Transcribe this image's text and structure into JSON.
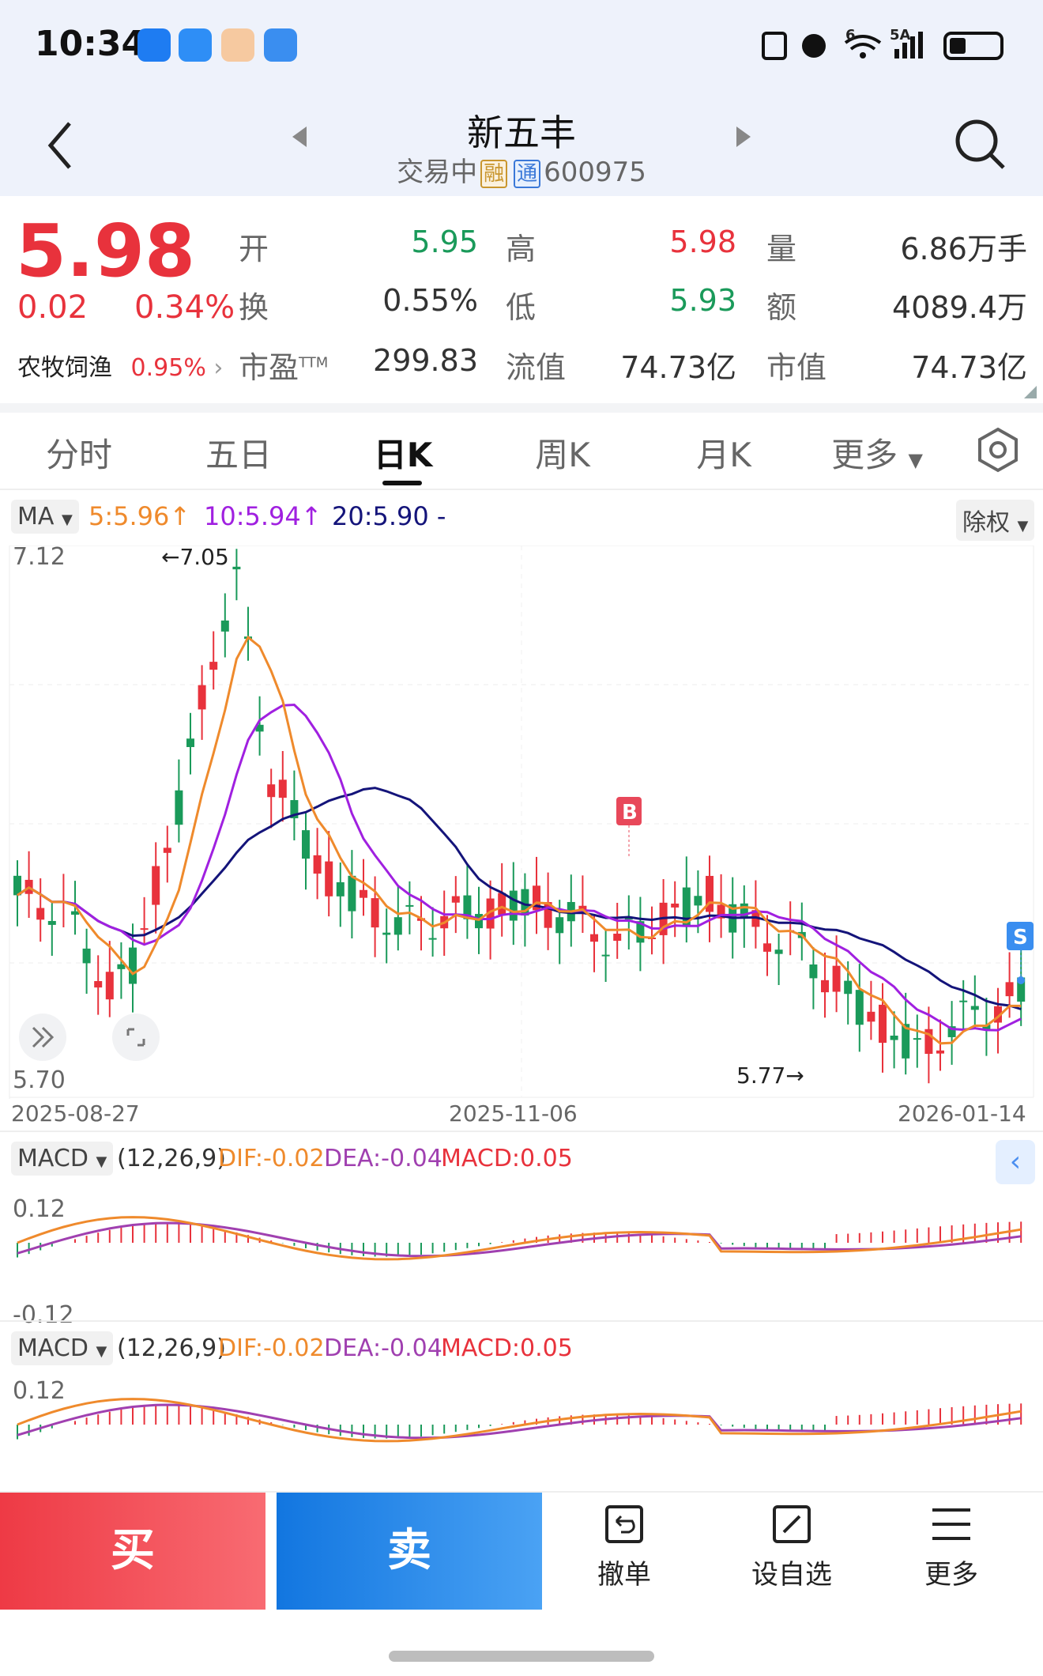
{
  "status": {
    "time": "10:34",
    "net": "5A",
    "net2": "6"
  },
  "header": {
    "title": "新五丰",
    "state": "交易中",
    "tag_rong": "融",
    "tag_tong": "通",
    "code": "600975"
  },
  "quote": {
    "price": "5.98",
    "change": "0.02",
    "change_pct": "0.34%",
    "sector_name": "农牧饲渔",
    "sector_pct": "0.95%",
    "open_label": "开",
    "open": "5.95",
    "high_label": "高",
    "high": "5.98",
    "vol_label": "量",
    "vol": "6.86万手",
    "turnover_label": "换",
    "turnover": "0.55%",
    "low_label": "低",
    "low": "5.93",
    "amount_label": "额",
    "amount": "4089.4万",
    "pe_label": "市盈",
    "pe_sup": "TTM",
    "pe": "299.83",
    "float_label": "流值",
    "float_cap": "74.73亿",
    "mcap_label": "市值",
    "mcap": "74.73亿"
  },
  "tabs": [
    {
      "label": "分时"
    },
    {
      "label": "五日"
    },
    {
      "label": "日K"
    },
    {
      "label": "周K"
    },
    {
      "label": "月K"
    },
    {
      "label": "更多"
    }
  ],
  "ma_legend": {
    "selector": "MA",
    "ma5": "5:5.96",
    "ma10": "10:5.94",
    "ma20": "20:5.90 -",
    "adjust": "除权"
  },
  "kchart": {
    "y_top": "7.12",
    "y_bottom": "5.70",
    "high_marker": "←7.05",
    "low_marker": "5.77→",
    "x_labels": [
      "2025-08-27",
      "2025-11-06",
      "2026-01-14"
    ],
    "buy_marker": "B",
    "sell_marker": "S"
  },
  "macd1": {
    "selector": "MACD",
    "params": "(12,26,9)",
    "dif": "DIF:-0.02",
    "dea": "DEA:-0.04",
    "macd": "MACD:0.05",
    "y_top": "0.12",
    "y_bottom": "-0.12"
  },
  "macd2": {
    "selector": "MACD",
    "params": "(12,26,9)",
    "dif": "DIF:-0.02",
    "dea": "DEA:-0.04",
    "macd": "MACD:0.05",
    "y_top": "0.12"
  },
  "bottom": {
    "buy": "买",
    "sell": "卖",
    "cancel": "撤单",
    "watch": "设自选",
    "more": "更多"
  },
  "colors": {
    "up": "#e8323c",
    "down": "#1a9a5a",
    "ma5": "#ef8a2c",
    "ma10": "#a020e0",
    "ma20": "#14147a",
    "accent": "#1276e0"
  }
}
